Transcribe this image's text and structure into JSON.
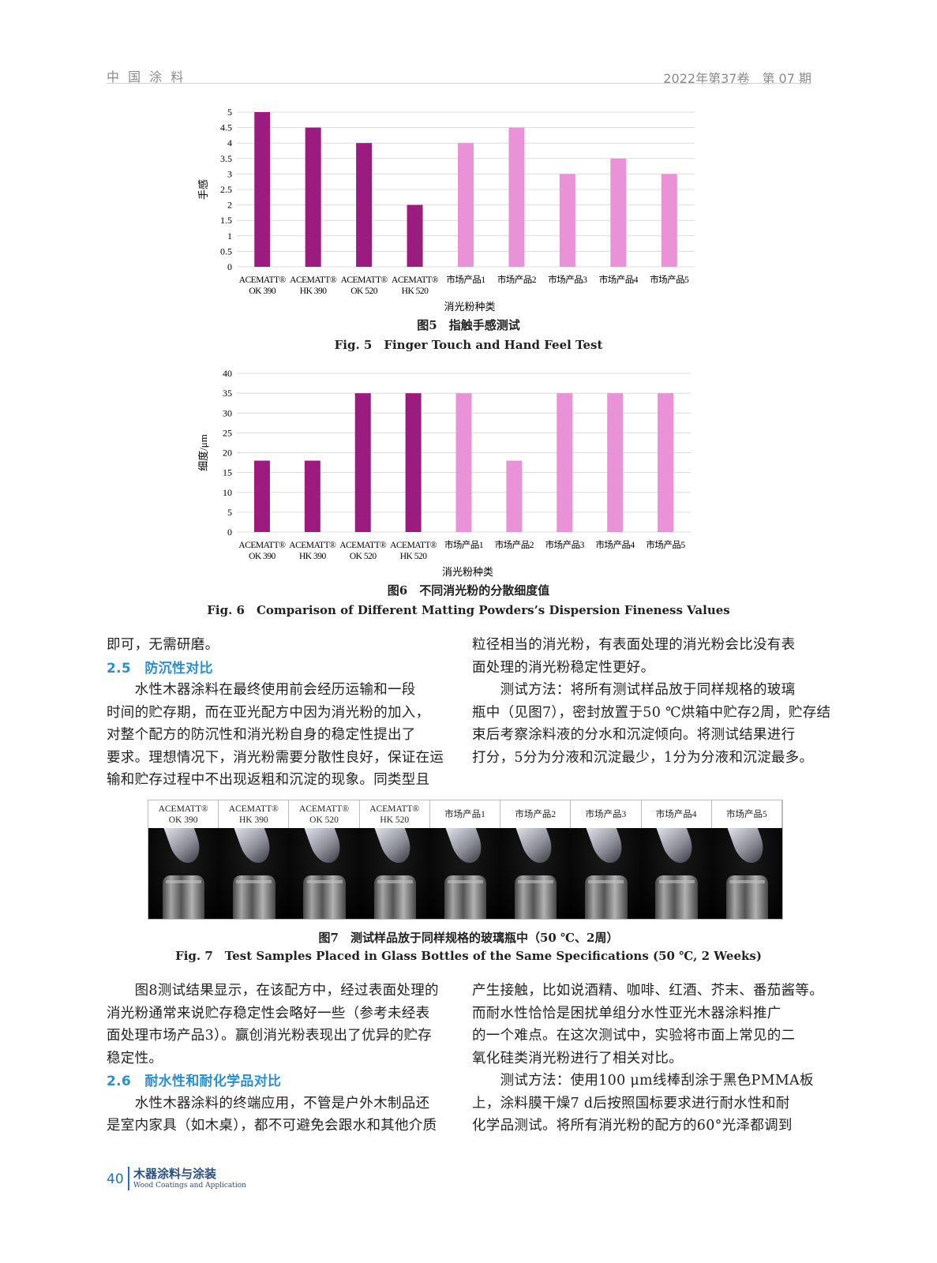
{
  "header": {
    "journal": "中 国 涂 料",
    "issue": "2022年第37卷　第 07 期"
  },
  "chart_data": [
    {
      "type": "bar",
      "ylabel": "手感",
      "xlabel": "消光粉种类",
      "ylim": [
        0,
        5
      ],
      "yticks": [
        "0",
        "0.5",
        "1",
        "1.5",
        "2",
        "2.5",
        "3",
        "3.5",
        "4",
        "4.5",
        "5"
      ],
      "categories": [
        [
          "ACEMATT®",
          "OK 390"
        ],
        [
          "ACEMATT®",
          "HK 390"
        ],
        [
          "ACEMATT®",
          "OK 520"
        ],
        [
          "ACEMATT®",
          "HK 520"
        ],
        [
          "市场产品1"
        ],
        [
          "市场产品2"
        ],
        [
          "市场产品3"
        ],
        [
          "市场产品4"
        ],
        [
          "市场产品5"
        ]
      ],
      "values": [
        5,
        4.5,
        4,
        2,
        4,
        4.5,
        3,
        3.5,
        3
      ],
      "colors": [
        "#9c1b7f",
        "#9c1b7f",
        "#9c1b7f",
        "#9c1b7f",
        "#ea92d8",
        "#ea92d8",
        "#ea92d8",
        "#ea92d8",
        "#ea92d8"
      ],
      "grid": true,
      "caption_cn": "图5　指触手感测试",
      "caption_en": "Fig. 5　Finger Touch and Hand Feel Test"
    },
    {
      "type": "bar",
      "ylabel": "细度/μm",
      "xlabel": "消光粉种类",
      "ylim": [
        0,
        40
      ],
      "yticks": [
        "0",
        "5",
        "10",
        "15",
        "20",
        "25",
        "30",
        "35",
        "40"
      ],
      "categories": [
        [
          "ACEMATT®",
          "OK 390"
        ],
        [
          "ACEMATT®",
          "HK 390"
        ],
        [
          "ACEMATT®",
          "OK 520"
        ],
        [
          "ACEMATT®",
          "HK 520"
        ],
        [
          "市场产品1"
        ],
        [
          "市场产品2"
        ],
        [
          "市场产品3"
        ],
        [
          "市场产品4"
        ],
        [
          "市场产品5"
        ]
      ],
      "values": [
        18,
        18,
        35,
        35,
        35,
        18,
        35,
        35,
        35
      ],
      "colors": [
        "#9c1b7f",
        "#9c1b7f",
        "#9c1b7f",
        "#9c1b7f",
        "#ea92d8",
        "#ea92d8",
        "#ea92d8",
        "#ea92d8",
        "#ea92d8"
      ],
      "grid": true,
      "caption_cn": "图6　不同消光粉的分散细度值",
      "caption_en": "Fig. 6　Comparison of Different Matting Powders’s Dispersion Fineness Values"
    }
  ],
  "body1": {
    "left": [
      {
        "t": "即可，无需研磨。"
      },
      {
        "t": "2.5　防沉性对比",
        "head": true
      },
      {
        "t": "　　水性木器涂料在最终使用前会经历运输和一段"
      },
      {
        "t": "时间的贮存期，而在亚光配方中因为消光粉的加入，"
      },
      {
        "t": "对整个配方的防沉性和消光粉自身的稳定性提出了"
      },
      {
        "t": "要求。理想情况下，消光粉需要分散性良好，保证在运"
      },
      {
        "t": "输和贮存过程中不出现返粗和沉淀的现象。同类型且"
      }
    ],
    "right": [
      {
        "t": "粒径相当的消光粉，有表面处理的消光粉会比没有表"
      },
      {
        "t": "面处理的消光粉稳定性更好。"
      },
      {
        "t": "　　测试方法：将所有测试样品放于同样规格的玻璃"
      },
      {
        "t": "瓶中（见图7），密封放置于50 ℃烘箱中贮存2周，贮存结"
      },
      {
        "t": "束后考察涂料液的分水和沉淀倾向。将测试结果进行"
      },
      {
        "t": "打分，5分为分液和沉淀最少，1分为分液和沉淀最多。"
      }
    ]
  },
  "fig7": {
    "labels": [
      [
        "ACEMATT®",
        "OK 390"
      ],
      [
        "ACEMATT®",
        "HK 390"
      ],
      [
        "ACEMATT®",
        "OK 520"
      ],
      [
        "ACEMATT®",
        "HK 520"
      ],
      [
        "市场产品1"
      ],
      [
        "市场产品2"
      ],
      [
        "市场产品3"
      ],
      [
        "市场产品4"
      ],
      [
        "市场产品5"
      ]
    ],
    "caption_cn": "图7　测试样品放于同样规格的玻璃瓶中（50 ℃、2周）",
    "caption_en": "Fig. 7　Test Samples Placed in Glass Bottles of the Same Specifications (50 ℃, 2 Weeks)"
  },
  "body2": {
    "left": [
      {
        "t": "　　图8测试结果显示，在该配方中，经过表面处理的"
      },
      {
        "t": "消光粉通常来说贮存稳定性会略好一些（参考未经表"
      },
      {
        "t": "面处理市场产品3）。赢创消光粉表现出了优异的贮存"
      },
      {
        "t": "稳定性。"
      },
      {
        "t": "2.6　耐水性和耐化学品对比",
        "head": true
      },
      {
        "t": "　　水性木器涂料的终端应用，不管是户外木制品还"
      },
      {
        "t": "是室内家具（如木桌），都不可避免会跟水和其他介质"
      }
    ],
    "right": [
      {
        "t": "产生接触，比如说酒精、咖啡、红酒、芥末、番茄酱等。"
      },
      {
        "t": "而耐水性恰恰是困扰单组分水性亚光木器涂料推广"
      },
      {
        "t": "的一个难点。在这次测试中，实验将市面上常见的二"
      },
      {
        "t": "氧化硅类消光粉进行了相关对比。"
      },
      {
        "t": "　　测试方法：使用100 μm线棒刮涂于黑色PMMA板"
      },
      {
        "t": "上，涂料膜干燥7 d后按照国标要求进行耐水性和耐"
      },
      {
        "t": "化学品测试。将所有消光粉的配方的60°光泽都调到"
      }
    ]
  },
  "footer": {
    "page": "40",
    "journal_cn": "木器涂料与涂装",
    "journal_en": "Wood Coatings and Application"
  }
}
